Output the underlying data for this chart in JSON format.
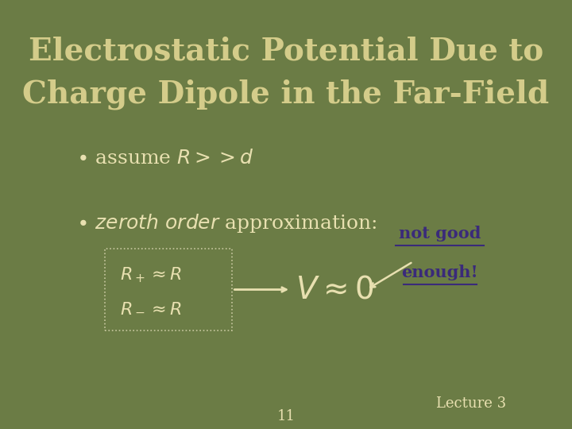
{
  "background_color": "#6b7c45",
  "title_line1": "Electrostatic Potential Due to",
  "title_line2": "Charge Dipole in the Far-Field",
  "title_color": "#d4cc8a",
  "title_fontsize": 28,
  "bullet_color": "#e8e0b0",
  "eq_color": "#e8e0b0",
  "box_border_color": "#c8c8a0",
  "annotation_color": "#3a2a7a",
  "footnote_page": "11",
  "footnote_lecture": "Lecture 3",
  "footnote_color": "#e8e0b0"
}
